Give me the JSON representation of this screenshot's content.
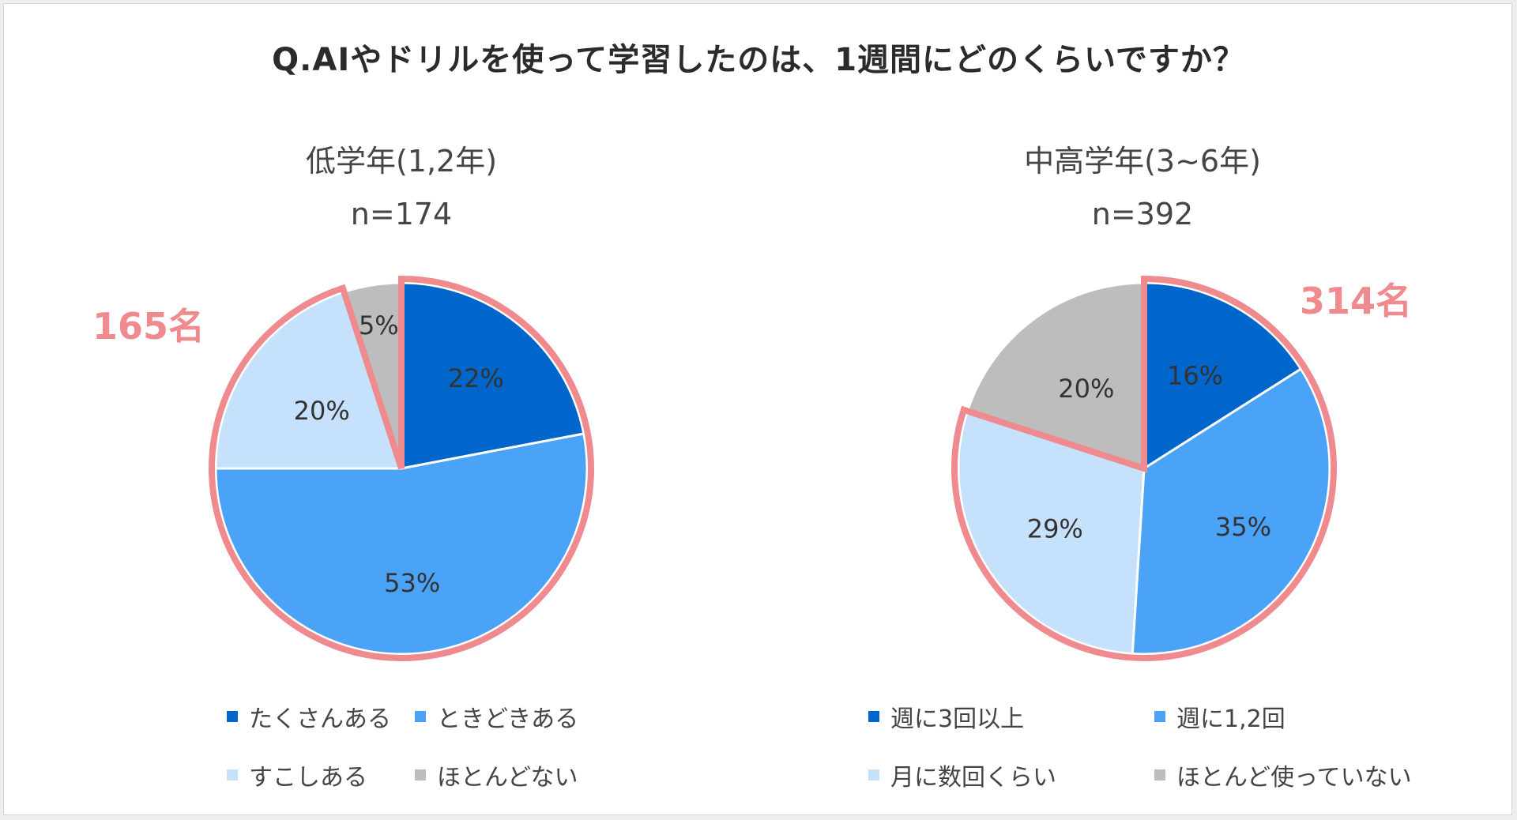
{
  "title": "Q.AIやドリルを使って学習したのは、1週間にどのくらいですか？",
  "colors": {
    "dark_blue": "#0066cc",
    "mid_blue": "#4aa3f7",
    "light_blue": "#c6e1fb",
    "gray": "#bdbdbd",
    "highlight": "#ef8a8e"
  },
  "chart_data": [
    {
      "type": "pie",
      "title": "低学年(1,2年)",
      "subtitle": "n=174",
      "callout": "165名",
      "categories": [
        "たくさんある",
        "ときどきある",
        "すこしある",
        "ほとんどない"
      ],
      "values": [
        22,
        53,
        20,
        5
      ],
      "labels": [
        "22%",
        "53%",
        "20%",
        "5%"
      ],
      "highlighted_categories": [
        "たくさんある",
        "ときどきある",
        "すこしある"
      ],
      "legend_placement": "bottom"
    },
    {
      "type": "pie",
      "title": "中高学年(3~6年)",
      "subtitle": "n=392",
      "callout": "314名",
      "categories": [
        "週に3回以上",
        "週に1,2回",
        "月に数回くらい",
        "ほとんど使っていない"
      ],
      "values": [
        16,
        35,
        29,
        20
      ],
      "labels": [
        "16%",
        "35%",
        "29%",
        "20%"
      ],
      "highlighted_categories": [
        "週に3回以上",
        "週に1,2回",
        "月に数回くらい"
      ],
      "legend_placement": "bottom"
    }
  ]
}
